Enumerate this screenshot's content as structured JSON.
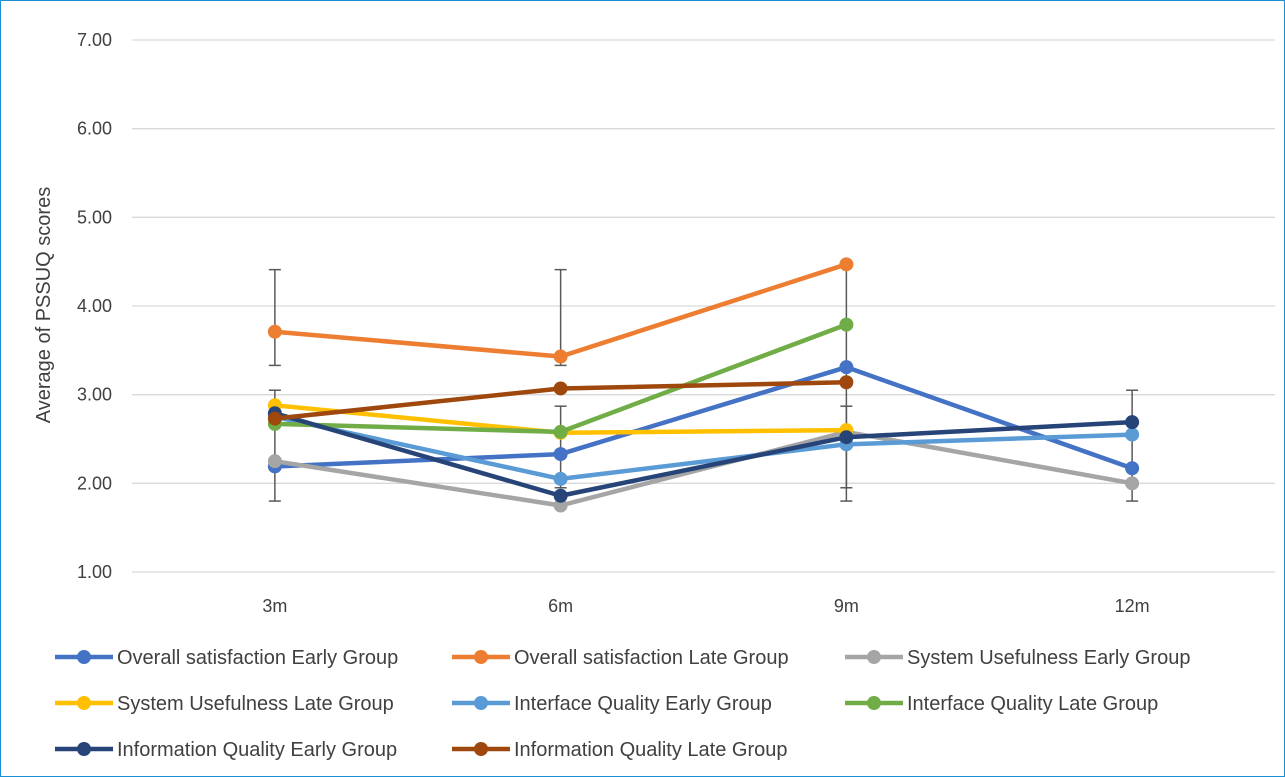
{
  "chart_data": {
    "type": "line",
    "title": "",
    "xlabel": "",
    "ylabel": "Average of PSSUQ scores",
    "categories": [
      "3m",
      "6m",
      "9m",
      "12m"
    ],
    "ylim": [
      1,
      7
    ],
    "yticks": [
      "1.00",
      "2.00",
      "3.00",
      "4.00",
      "5.00",
      "6.00",
      "7.00"
    ],
    "grid": true,
    "legend_position": "bottom",
    "error_bars": [
      {
        "category": "3m",
        "low": 1.8,
        "high": 3.05
      },
      {
        "category": "3m",
        "low": 3.33,
        "high": 4.41
      },
      {
        "category": "6m",
        "low": 1.95,
        "high": 2.87
      },
      {
        "category": "6m",
        "low": 3.33,
        "high": 4.41
      },
      {
        "category": "9m",
        "low": 1.8,
        "high": 2.87
      },
      {
        "category": "9m",
        "low": 1.95,
        "high": 4.47
      },
      {
        "category": "12m",
        "low": 1.8,
        "high": 3.05
      }
    ],
    "series": [
      {
        "name": "Overall satisfaction Early Group",
        "color": "#4472c4",
        "values": [
          2.19,
          2.33,
          3.31,
          2.17
        ]
      },
      {
        "name": "Overall satisfaction Late Group",
        "color": "#ed7d31",
        "values": [
          3.71,
          3.43,
          4.47,
          null
        ]
      },
      {
        "name": "System Usefulness Early Group",
        "color": "#a5a5a5",
        "values": [
          2.25,
          1.75,
          2.58,
          2.0
        ]
      },
      {
        "name": "System Usefulness Late Group",
        "color": "#ffc000",
        "values": [
          2.88,
          2.57,
          2.6,
          null
        ]
      },
      {
        "name": "Interface Quality Early Group",
        "color": "#5b9bd5",
        "values": [
          2.75,
          2.05,
          2.44,
          2.55
        ]
      },
      {
        "name": "Interface Quality Late Group",
        "color": "#70ad47",
        "values": [
          2.67,
          2.58,
          3.79,
          null
        ]
      },
      {
        "name": "Information Quality Early Group",
        "color": "#264478",
        "values": [
          2.79,
          1.86,
          2.52,
          2.69
        ]
      },
      {
        "name": "Information Quality Late Group",
        "color": "#9e480e",
        "values": [
          2.73,
          3.07,
          3.14,
          null
        ]
      }
    ]
  }
}
